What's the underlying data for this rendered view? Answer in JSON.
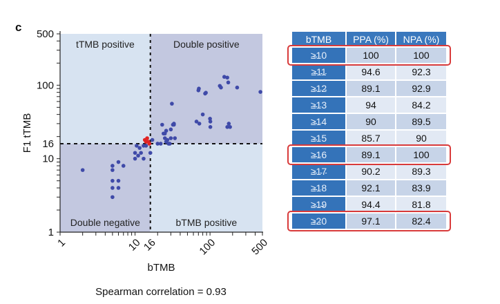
{
  "panel_label": "c",
  "chart_data": {
    "type": "scatter",
    "title": "",
    "xlabel": "bTMB",
    "ylabel": "F1 tTMB",
    "xscale": "log",
    "yscale": "log",
    "xlim": [
      1,
      500
    ],
    "ylim": [
      1,
      500
    ],
    "xticks": [
      1,
      10,
      16,
      100,
      500
    ],
    "yticks": [
      1,
      10,
      16,
      100,
      500
    ],
    "threshold": {
      "x": 16,
      "y": 16
    },
    "quadrant_labels": {
      "top_left": "tTMB positive",
      "top_right": "Double positive",
      "bottom_left": "Double negative",
      "bottom_right": "bTMB positive"
    },
    "quadrant_colors": {
      "light": "#d7e3f1",
      "dark": "#c3c8e0"
    },
    "annotation": "Spearman correlation = 0.93",
    "series": [
      {
        "name": "samples",
        "color": "#3f4aa8",
        "points": [
          [
            2,
            7
          ],
          [
            5,
            8
          ],
          [
            5,
            7
          ],
          [
            5,
            5
          ],
          [
            5,
            4
          ],
          [
            5,
            3
          ],
          [
            6,
            9
          ],
          [
            6,
            5
          ],
          [
            6,
            4
          ],
          [
            7,
            8
          ],
          [
            10,
            10
          ],
          [
            10,
            12
          ],
          [
            10.5,
            15
          ],
          [
            11,
            11
          ],
          [
            11.5,
            14
          ],
          [
            12,
            12
          ],
          [
            13,
            10
          ],
          [
            13,
            15
          ],
          [
            14,
            15
          ],
          [
            16,
            12
          ],
          [
            17,
            18
          ],
          [
            20,
            16
          ],
          [
            22,
            16
          ],
          [
            23,
            29
          ],
          [
            24,
            22
          ],
          [
            25,
            22
          ],
          [
            26,
            24
          ],
          [
            25,
            19
          ],
          [
            26,
            17
          ],
          [
            27,
            18
          ],
          [
            28,
            16
          ],
          [
            29,
            16
          ],
          [
            30,
            25
          ],
          [
            30,
            19
          ],
          [
            31,
            56
          ],
          [
            32,
            29
          ],
          [
            33,
            30
          ],
          [
            34,
            19
          ],
          [
            33,
            29
          ],
          [
            66,
            32
          ],
          [
            72,
            30
          ],
          [
            71,
            90
          ],
          [
            70,
            85
          ],
          [
            80,
            40
          ],
          [
            86,
            77
          ],
          [
            88,
            79
          ],
          [
            100,
            35
          ],
          [
            101,
            32
          ],
          [
            101,
            27
          ],
          [
            135,
            98
          ],
          [
            140,
            93
          ],
          [
            155,
            130
          ],
          [
            170,
            127
          ],
          [
            175,
            109
          ],
          [
            170,
            27
          ],
          [
            178,
            30
          ],
          [
            185,
            27
          ],
          [
            230,
            93
          ],
          [
            470,
            81
          ]
        ]
      },
      {
        "name": "highlighted",
        "color": "#e02424",
        "points": [
          [
            13.5,
            18
          ],
          [
            14.5,
            19
          ],
          [
            15,
            17
          ],
          [
            15.5,
            16
          ],
          [
            14,
            17
          ]
        ]
      }
    ]
  },
  "table": {
    "headers": [
      "bTMB",
      "PPA (%)",
      "NPA (%)"
    ],
    "rows": [
      {
        "bTMB": "≥10",
        "PPA": "100",
        "NPA": "100",
        "highlighted": true
      },
      {
        "bTMB": "≥11",
        "PPA": "94.6",
        "NPA": "92.3",
        "highlighted": false
      },
      {
        "bTMB": "≥12",
        "PPA": "89.1",
        "NPA": "92.9",
        "highlighted": false
      },
      {
        "bTMB": "≥13",
        "PPA": "94",
        "NPA": "84.2",
        "highlighted": false
      },
      {
        "bTMB": "≥14",
        "PPA": "90",
        "NPA": "89.5",
        "highlighted": false
      },
      {
        "bTMB": "≥15",
        "PPA": "85.7",
        "NPA": "90",
        "highlighted": false
      },
      {
        "bTMB": "≥16",
        "PPA": "89.1",
        "NPA": "100",
        "highlighted": true
      },
      {
        "bTMB": "≥17",
        "PPA": "90.2",
        "NPA": "89.3",
        "highlighted": false
      },
      {
        "bTMB": "≥18",
        "PPA": "92.1",
        "NPA": "83.9",
        "highlighted": false
      },
      {
        "bTMB": "≥19",
        "PPA": "94.4",
        "NPA": "81.8",
        "highlighted": false
      },
      {
        "bTMB": "≥20",
        "PPA": "97.1",
        "NPA": "82.4",
        "highlighted": true
      }
    ],
    "highlight_color": "#d83a3a"
  }
}
